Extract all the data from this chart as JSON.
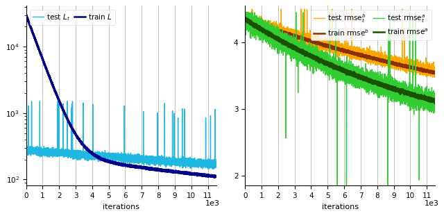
{
  "left_plot": {
    "xlabel": "iterations",
    "xlim": [
      0,
      11500
    ],
    "xticks": [
      0,
      1000,
      2000,
      3000,
      4000,
      5000,
      6000,
      7000,
      8000,
      9000,
      10000,
      11000
    ],
    "xtick_labels": [
      "0",
      "1",
      "2",
      "3",
      "4",
      "5",
      "6",
      "7",
      "8",
      "9",
      "10",
      "11"
    ],
    "xscale_label": "1e3",
    "legend": [
      {
        "label": "test $L_t$",
        "color": "#1EB8E0",
        "lw": 1.0
      },
      {
        "label": "train $L$",
        "color": "#00008B",
        "lw": 1.8
      }
    ]
  },
  "right_plot": {
    "xlabel": "iterations",
    "xlim": [
      0,
      11500
    ],
    "ylim": [
      1.85,
      4.55
    ],
    "yticks": [
      2.0,
      3.0,
      4.0
    ],
    "xticks": [
      0,
      1000,
      2000,
      3000,
      4000,
      5000,
      6000,
      7000,
      8000,
      9000,
      10000,
      11000
    ],
    "xtick_labels": [
      "0",
      "1",
      "2",
      "3",
      "4",
      "5",
      "6",
      "7",
      "8",
      "9",
      "10",
      "11"
    ],
    "xscale_label": "1e3",
    "legend": [
      {
        "label": "test rmse$^b_t$",
        "color": "#FFA500",
        "lw": 1.0
      },
      {
        "label": "train rmse$^b$",
        "color": "#8B3000",
        "lw": 1.8
      },
      {
        "label": "test rmse$^a_t$",
        "color": "#32CD32",
        "lw": 1.0
      },
      {
        "label": "train rmse$^a$",
        "color": "#1A5200",
        "lw": 1.8
      }
    ]
  },
  "grid_color": "#C0C0C0",
  "bg_color": "#FFFFFF"
}
